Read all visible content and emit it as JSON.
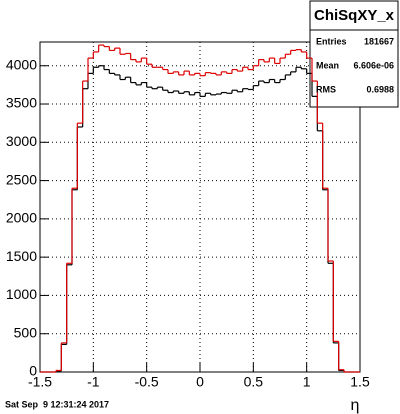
{
  "chart_data": {
    "type": "histogram",
    "xlabel": "η",
    "date": "Sat Sep  9 12:31:24 2017",
    "stats": {
      "title": "ChiSqXY_x",
      "rows": [
        [
          "Entries",
          181667
        ],
        [
          "Mean",
          "6.606e-06"
        ],
        [
          "RMS",
          0.6988
        ]
      ]
    },
    "bins": [
      -1.5,
      -1.45,
      -1.4,
      -1.35,
      -1.3,
      -1.25,
      -1.2,
      -1.15,
      -1.1,
      -1.05,
      -1.0,
      -0.95,
      -0.9,
      -0.85,
      -0.8,
      -0.75,
      -0.7,
      -0.65,
      -0.6,
      -0.55,
      -0.5,
      -0.45,
      -0.4,
      -0.35,
      -0.3,
      -0.25,
      -0.2,
      -0.15,
      -0.1,
      -0.05,
      0,
      0.05,
      0.1,
      0.15,
      0.2,
      0.25,
      0.3,
      0.35,
      0.4,
      0.45,
      0.5,
      0.55,
      0.6,
      0.65,
      0.7,
      0.75,
      0.8,
      0.85,
      0.9,
      0.95,
      1.0,
      1.05,
      1.1,
      1.15,
      1.2,
      1.25,
      1.3,
      1.35,
      1.4,
      1.45,
      1.5
    ],
    "series": [
      {
        "color": "#000000",
        "values": [
          0,
          0,
          0,
          15,
          360,
          1400,
          2380,
          3200,
          3700,
          3900,
          3980,
          4000,
          3950,
          3900,
          3880,
          3820,
          3850,
          3780,
          3750,
          3780,
          3720,
          3700,
          3720,
          3680,
          3650,
          3670,
          3640,
          3660,
          3620,
          3650,
          3600,
          3640,
          3620,
          3630,
          3650,
          3640,
          3680,
          3660,
          3700,
          3690,
          3740,
          3800,
          3780,
          3820,
          3780,
          3820,
          3880,
          3920,
          3980,
          3960,
          3900,
          3600,
          3150,
          2380,
          1420,
          380,
          20,
          0,
          0,
          0
        ]
      },
      {
        "color": "#dd0000",
        "values": [
          0,
          0,
          0,
          20,
          380,
          1420,
          2400,
          3250,
          3800,
          4100,
          4180,
          4270,
          4250,
          4200,
          4230,
          4150,
          4160,
          4080,
          4050,
          4100,
          4020,
          3980,
          3980,
          3950,
          3900,
          3920,
          3880,
          3930,
          3880,
          3900,
          3870,
          3910,
          3900,
          3880,
          3920,
          3900,
          3950,
          3930,
          3980,
          3950,
          4000,
          4080,
          4050,
          4100,
          4030,
          4100,
          4150,
          4200,
          4210,
          4180,
          4100,
          3800,
          3250,
          2400,
          1450,
          400,
          30,
          0,
          0,
          0
        ]
      }
    ],
    "xlim": [
      -1.5,
      1.5
    ],
    "ylim": [
      0,
      4310
    ],
    "xticks": [
      -1.5,
      -1,
      -0.5,
      0,
      0.5,
      1,
      1.5
    ],
    "yticks": [
      0,
      500,
      1000,
      1500,
      2000,
      2500,
      3000,
      3500,
      4000
    ],
    "grid": true
  }
}
